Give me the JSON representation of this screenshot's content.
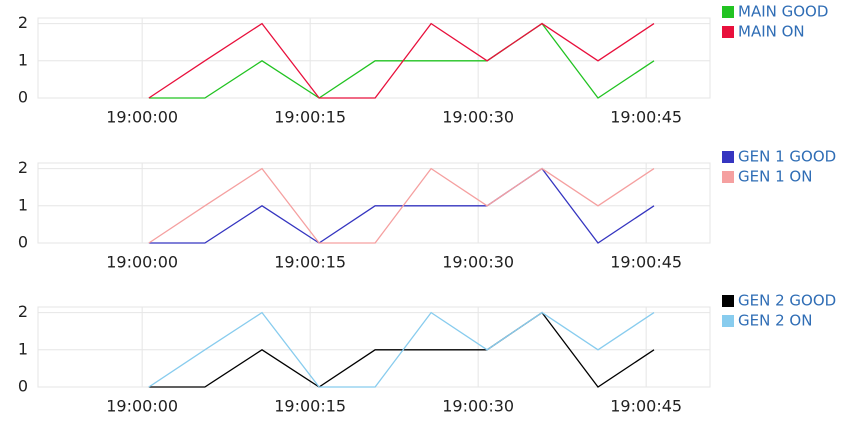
{
  "chart_data": [
    {
      "type": "line",
      "x": [
        0.6,
        5.6,
        10.7,
        15.8,
        20.8,
        25.8,
        30.8,
        35.7,
        40.7,
        45.7
      ],
      "series": [
        {
          "name": "MAIN GOOD",
          "color": "#22c322",
          "values": [
            0,
            0,
            1,
            0,
            1,
            1,
            1,
            2,
            0,
            1
          ]
        },
        {
          "name": "MAIN ON",
          "color": "#e8103c",
          "values": [
            0,
            1,
            2,
            0,
            0,
            2,
            1,
            2,
            1,
            2
          ]
        }
      ],
      "xlim": [
        -9.3,
        50.7
      ],
      "ylim": [
        0,
        2.15
      ],
      "yticks": [
        0,
        1,
        2
      ],
      "xticks": [
        {
          "value": 0,
          "label": "19:00:00"
        },
        {
          "value": 15,
          "label": "19:00:15"
        },
        {
          "value": 30,
          "label": "19:00:30"
        },
        {
          "value": 45,
          "label": "19:00:45"
        }
      ],
      "grid": true,
      "legend": "right"
    },
    {
      "type": "line",
      "x": [
        0.6,
        5.6,
        10.7,
        15.8,
        20.8,
        25.8,
        30.8,
        35.7,
        40.7,
        45.7
      ],
      "series": [
        {
          "name": "GEN 1 GOOD",
          "color": "#3535c0",
          "values": [
            0,
            0,
            1,
            0,
            1,
            1,
            1,
            2,
            0,
            1
          ]
        },
        {
          "name": "GEN 1 ON",
          "color": "#f5a0a0",
          "values": [
            0,
            1,
            2,
            0,
            0,
            2,
            1,
            2,
            1,
            2
          ]
        }
      ],
      "xlim": [
        -9.3,
        50.7
      ],
      "ylim": [
        0,
        2.15
      ],
      "yticks": [
        0,
        1,
        2
      ],
      "xticks": [
        {
          "value": 0,
          "label": "19:00:00"
        },
        {
          "value": 15,
          "label": "19:00:15"
        },
        {
          "value": 30,
          "label": "19:00:30"
        },
        {
          "value": 45,
          "label": "19:00:45"
        }
      ],
      "grid": true,
      "legend": "right"
    },
    {
      "type": "line",
      "x": [
        0.6,
        5.6,
        10.7,
        15.8,
        20.8,
        25.8,
        30.8,
        35.7,
        40.7,
        45.7
      ],
      "series": [
        {
          "name": "GEN 2 GOOD",
          "color": "#000000",
          "values": [
            0,
            0,
            1,
            0,
            1,
            1,
            1,
            2,
            0,
            1
          ]
        },
        {
          "name": "GEN 2 ON",
          "color": "#88ccee",
          "values": [
            0,
            1,
            2,
            0,
            0,
            2,
            1,
            2,
            1,
            2
          ]
        }
      ],
      "xlim": [
        -9.3,
        50.7
      ],
      "ylim": [
        0,
        2.15
      ],
      "yticks": [
        0,
        1,
        2
      ],
      "xticks": [
        {
          "value": 0,
          "label": "19:00:00"
        },
        {
          "value": 15,
          "label": "19:00:15"
        },
        {
          "value": 30,
          "label": "19:00:30"
        },
        {
          "value": 45,
          "label": "19:00:45"
        }
      ],
      "grid": true,
      "legend": "right"
    }
  ]
}
